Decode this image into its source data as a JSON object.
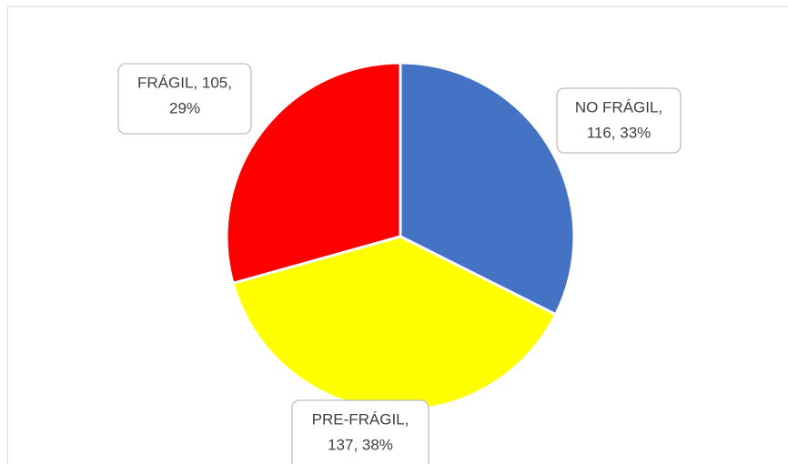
{
  "chart_data": {
    "type": "pie",
    "categories": [
      "NO FRÁGIL",
      "PRE-FRÁGIL",
      "FRÁGIL"
    ],
    "values": [
      116,
      137,
      105
    ],
    "value_labels": [
      [
        "NO FRÁGIL,",
        "116, 33%"
      ],
      [
        "PRE-FRÁGIL,",
        "137, 38%"
      ],
      [
        "FRÁGIL, 105,",
        "29%"
      ]
    ],
    "colors": [
      "#4472c4",
      "#ffff00",
      "#ff0000"
    ]
  }
}
